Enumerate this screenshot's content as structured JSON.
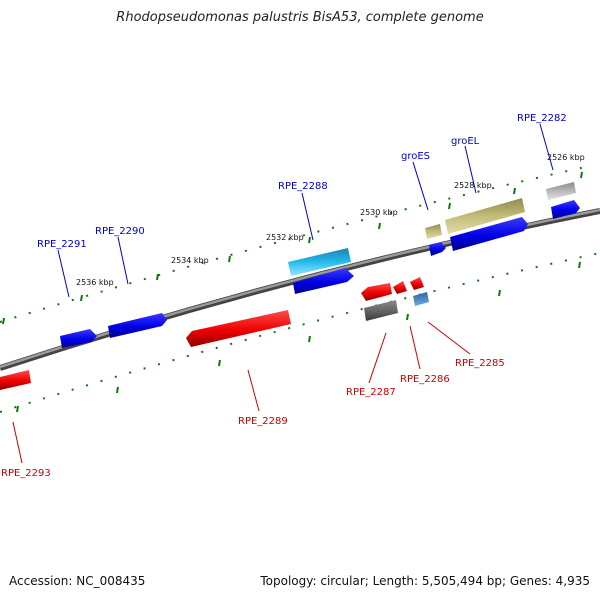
{
  "title": "Rhodopseudomonas palustris BisA53, complete genome",
  "accession": "Accession: NC_008435",
  "summary": "Topology: circular; Length: 5,505,494 bp; Genes: 4,935",
  "kbp_labels": [
    "2526 kbp",
    "2528 kbp",
    "2530 kbp",
    "2532 kbp",
    "2534 kbp",
    "2536 kbp"
  ],
  "gene_labels": {
    "rpe_2282": "RPE_2282",
    "groel": "groEL",
    "groes": "groES",
    "rpe_2288": "RPE_2288",
    "rpe_2290": "RPE_2290",
    "rpe_2291": "RPE_2291",
    "rpe_2285": "RPE_2285",
    "rpe_2286": "RPE_2286",
    "rpe_2287": "RPE_2287",
    "rpe_2289": "RPE_2289",
    "rpe_2293": "RPE_2293"
  },
  "colors": {
    "forward_gene": "#0000ee",
    "reverse_gene": "#ee0000",
    "rna_gene": "#22bbee",
    "chaperone_gene": "#c8c080",
    "backbone": "#808080",
    "tick": "#117711"
  }
}
